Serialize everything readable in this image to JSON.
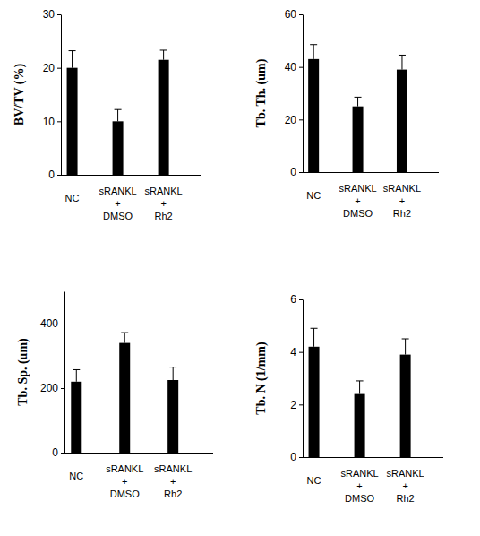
{
  "chart_data": [
    {
      "type": "bar",
      "ylabel": "BV/TV (%)",
      "categories": [
        "NC",
        "sRANKL\n+\nDMSO",
        "sRANKL\n+\nRh2"
      ],
      "values": [
        20,
        10,
        21.5
      ],
      "errors": [
        3.2,
        2.2,
        1.8
      ],
      "color": "#000000",
      "ylim": [
        0,
        30
      ],
      "yticks": [
        0,
        10,
        20,
        30
      ]
    },
    {
      "type": "bar",
      "ylabel": "Tb. Th. (um)",
      "categories": [
        "NC",
        "sRANKL\n+\nDMSO",
        "sRANKL\n+\nRh2"
      ],
      "values": [
        43,
        25,
        39
      ],
      "errors": [
        5.5,
        3.5,
        5.5
      ],
      "color": "#000000",
      "ylim": [
        0,
        60
      ],
      "yticks": [
        0,
        20,
        40,
        60
      ]
    },
    {
      "type": "bar",
      "ylabel": "Tb. Sp. (um)",
      "categories": [
        "NC",
        "sRANKL\n+\nDMSO",
        "sRANKL\n+\nRh2"
      ],
      "values": [
        220,
        340,
        225
      ],
      "errors": [
        37,
        32,
        40
      ],
      "color": "#000000",
      "ylim": [
        0,
        500
      ],
      "yticks": [
        0,
        200,
        400
      ]
    },
    {
      "type": "bar",
      "ylabel": "Tb. N (1/mm)",
      "categories": [
        "NC",
        "sRANKL\n+\nDMSO",
        "sRANKL\n+\nRh2"
      ],
      "values": [
        4.2,
        2.4,
        3.9
      ],
      "errors": [
        0.7,
        0.5,
        0.6
      ],
      "color": "#000000",
      "ylim": [
        0,
        6
      ],
      "yticks": [
        0,
        2,
        4,
        6
      ]
    }
  ]
}
